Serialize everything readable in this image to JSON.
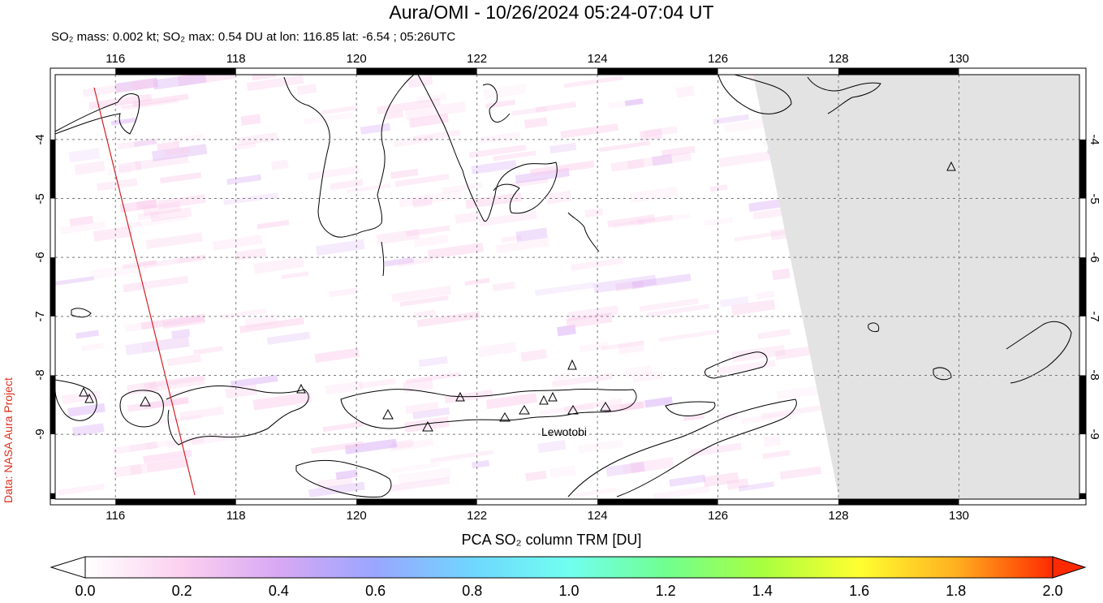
{
  "title": "Aura/OMI - 10/26/2024 05:24-07:04 UT",
  "subtitle": "SO₂ mass: 0.002 kt; SO₂ max: 0.54 DU at lon: 116.85 lat: -6.54 ; 05:26UTC",
  "credit": "Data: NASA Aura Project",
  "map": {
    "lon_range": [
      115,
      132
    ],
    "lat_range": [
      -10.1,
      -2.9
    ],
    "x_ticks": [
      "116",
      "118",
      "120",
      "122",
      "124",
      "126",
      "128",
      "130"
    ],
    "y_ticks": [
      "-4",
      "-5",
      "-6",
      "-7",
      "-8",
      "-9"
    ],
    "volcano_label": "Lewotobi",
    "no_data_color": "#e3e3e3",
    "coast_color": "#000000",
    "orbit_track_color": "#d42020"
  },
  "colorbar": {
    "label": "PCA SO₂ column TRM [DU]",
    "ticks": [
      "0.0",
      "0.2",
      "0.4",
      "0.6",
      "0.8",
      "1.0",
      "1.2",
      "1.4",
      "1.6",
      "1.8",
      "2.0"
    ],
    "range": [
      0,
      2
    ],
    "colors": [
      "#ffffff",
      "#fbd0f0",
      "#d8a8f4",
      "#9aa6ff",
      "#6fd6ff",
      "#70fff0",
      "#70ff90",
      "#a8ff40",
      "#ffff30",
      "#ffb020",
      "#ff2a00"
    ]
  }
}
